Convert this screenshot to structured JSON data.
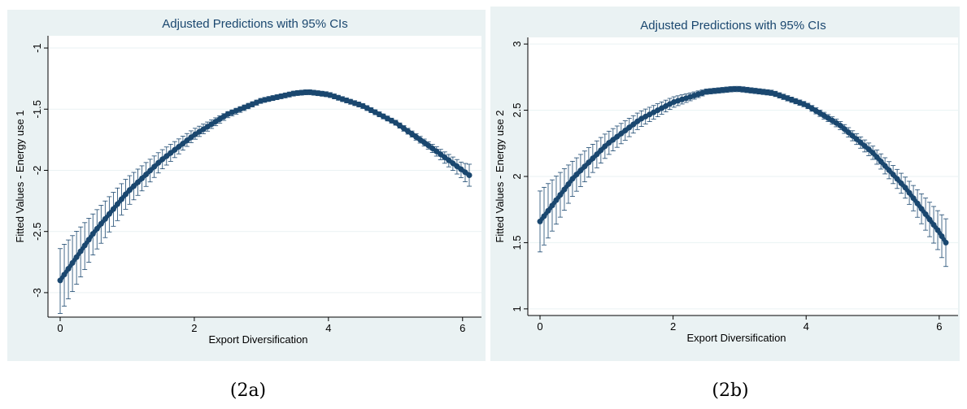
{
  "chart_data": [
    {
      "type": "line",
      "panel_label": "(2a)",
      "title": "Adjusted Predictions with 95% CIs",
      "xlabel": "Export Diversification",
      "ylabel": "Fitted Values - Energy use 1",
      "xlim": [
        0,
        6.1
      ],
      "ylim": [
        -3.2,
        -0.9
      ],
      "xticks": [
        0,
        2,
        4,
        6
      ],
      "yticks": [
        -3,
        -2.5,
        -2,
        -1.5,
        -1
      ],
      "ytick_labels": [
        "-3",
        "-2.5",
        "-2",
        "-1.5",
        "-1"
      ],
      "grid": true,
      "legend": "none",
      "curve": {
        "x": [
          0,
          0.5,
          1,
          1.5,
          2,
          2.5,
          3,
          3.5,
          3.7,
          4,
          4.5,
          5,
          5.5,
          6,
          6.1
        ],
        "y": [
          -2.9,
          -2.51,
          -2.18,
          -1.92,
          -1.71,
          -1.54,
          -1.43,
          -1.37,
          -1.36,
          -1.38,
          -1.47,
          -1.61,
          -1.8,
          -2,
          -2.04
        ],
        "ci_low": [
          -3.17,
          -2.68,
          -2.3,
          -2,
          -1.75,
          -1.57,
          -1.45,
          -1.39,
          -1.38,
          -1.4,
          -1.49,
          -1.63,
          -1.83,
          -2.07,
          -2.13
        ],
        "ci_high": [
          -2.64,
          -2.35,
          -2.06,
          -1.84,
          -1.66,
          -1.52,
          -1.41,
          -1.35,
          -1.34,
          -1.36,
          -1.45,
          -1.59,
          -1.77,
          -1.94,
          -1.95
        ]
      },
      "colors": {
        "line": "#1a476f",
        "grid": "#ffffff",
        "background": "#eaf2f3",
        "plot": "#ffffff"
      }
    },
    {
      "type": "line",
      "panel_label": "(2b)",
      "title": "Adjusted Predictions with 95% CIs",
      "xlabel": "Export Diversification",
      "ylabel": "Fitted Values - Energy use 2",
      "xlim": [
        0,
        6.1
      ],
      "ylim": [
        0.95,
        3.05
      ],
      "xticks": [
        0,
        2,
        4,
        6
      ],
      "yticks": [
        1,
        1.5,
        2,
        2.5,
        3
      ],
      "ytick_labels": [
        "1",
        "1.5",
        "2",
        "2.5",
        "3"
      ],
      "grid": true,
      "legend": "none",
      "curve": {
        "x": [
          0,
          0.5,
          1,
          1.5,
          2,
          2.5,
          2.9,
          3,
          3.5,
          4,
          4.5,
          5,
          5.5,
          6,
          6.1
        ],
        "y": [
          1.66,
          1.99,
          2.24,
          2.43,
          2.56,
          2.64,
          2.66,
          2.66,
          2.63,
          2.54,
          2.39,
          2.18,
          1.91,
          1.58,
          1.5
        ],
        "ci_low": [
          1.43,
          1.86,
          2.15,
          2.37,
          2.52,
          2.62,
          2.64,
          2.64,
          2.61,
          2.52,
          2.36,
          2.13,
          1.83,
          1.43,
          1.32
        ],
        "ci_high": [
          1.89,
          2.12,
          2.33,
          2.49,
          2.6,
          2.66,
          2.68,
          2.68,
          2.65,
          2.56,
          2.42,
          2.23,
          1.99,
          1.73,
          1.68
        ]
      },
      "colors": {
        "line": "#1a476f",
        "grid": "#ffffff",
        "background": "#eaf2f3",
        "plot": "#ffffff"
      }
    }
  ]
}
